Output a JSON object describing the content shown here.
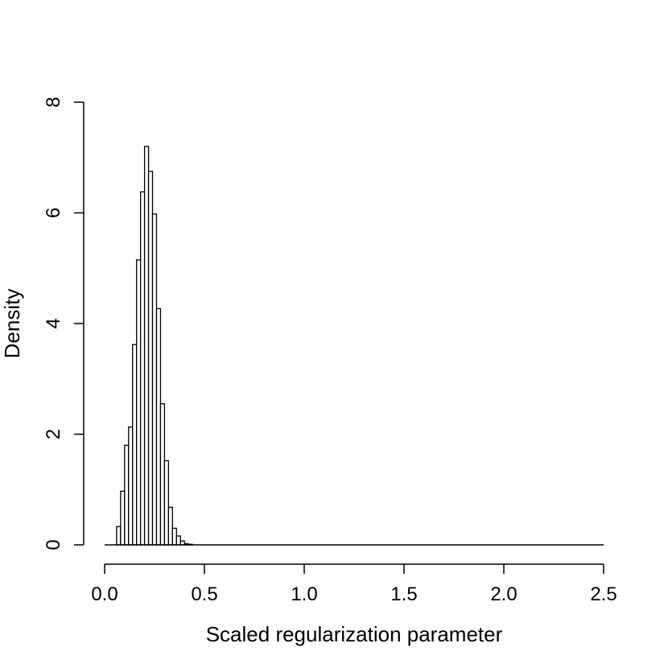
{
  "chart_data": {
    "type": "bar",
    "subtype": "histogram",
    "title": "",
    "xlabel": "Scaled regularization parameter",
    "ylabel": "Density",
    "xlim": [
      0,
      2.5
    ],
    "ylim": [
      0,
      8
    ],
    "x_ticks": [
      "0.0",
      "0.5",
      "1.0",
      "1.5",
      "2.0",
      "2.5"
    ],
    "y_ticks": [
      "0",
      "2",
      "4",
      "6",
      "8"
    ],
    "bin_width": 0.02,
    "bins": [
      {
        "x0": 0.06,
        "density": 0.33
      },
      {
        "x0": 0.08,
        "density": 0.97
      },
      {
        "x0": 0.1,
        "density": 1.8
      },
      {
        "x0": 0.12,
        "density": 2.13
      },
      {
        "x0": 0.14,
        "density": 3.62
      },
      {
        "x0": 0.16,
        "density": 5.15
      },
      {
        "x0": 0.18,
        "density": 6.38
      },
      {
        "x0": 0.2,
        "density": 7.2
      },
      {
        "x0": 0.22,
        "density": 6.75
      },
      {
        "x0": 0.24,
        "density": 5.98
      },
      {
        "x0": 0.26,
        "density": 4.27
      },
      {
        "x0": 0.28,
        "density": 2.55
      },
      {
        "x0": 0.3,
        "density": 1.52
      },
      {
        "x0": 0.32,
        "density": 0.68
      },
      {
        "x0": 0.34,
        "density": 0.3
      },
      {
        "x0": 0.36,
        "density": 0.16
      },
      {
        "x0": 0.38,
        "density": 0.07
      },
      {
        "x0": 0.4,
        "density": 0.02
      },
      {
        "x0": 0.42,
        "density": 0.01
      }
    ],
    "baseline_range": [
      0,
      2.5
    ],
    "grid": false,
    "bar_fill": "#ffffff",
    "bar_stroke": "#000000"
  }
}
